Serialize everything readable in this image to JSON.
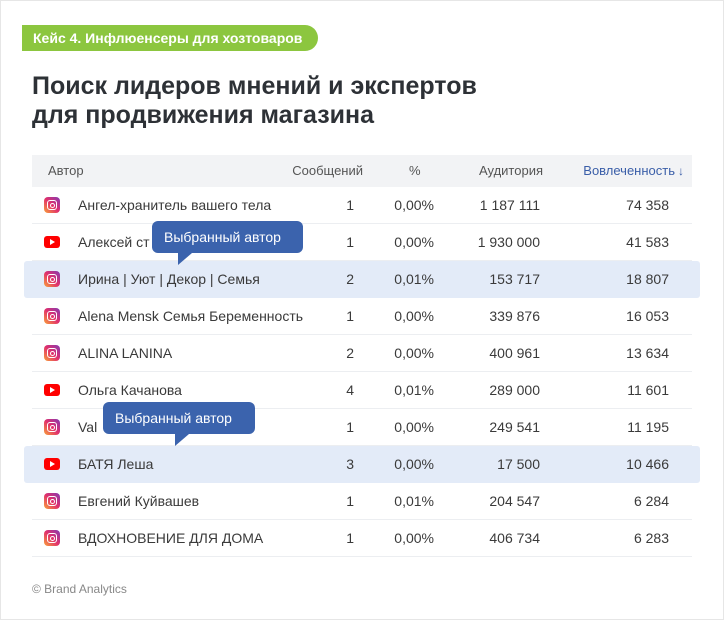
{
  "badge": "Кейс 4. Инфлюенсеры для хозтоваров",
  "title_line1": "Поиск лидеров мнений и экспертов",
  "title_line2": "для продвижения магазина",
  "columns": {
    "author": "Автор",
    "messages": "Сообщений",
    "percent": "%",
    "audience": "Аудитория",
    "engagement": "Вовлеченность",
    "sort_arrow": "↓"
  },
  "rows": [
    {
      "platform": "instagram-icon",
      "name": "Ангел-хранитель вашего тела",
      "messages": "1",
      "percent": "0,00%",
      "audience": "1 187 111",
      "engagement": "74 358",
      "selected": false
    },
    {
      "platform": "youtube-icon",
      "name": "Алексей ст",
      "messages": "1",
      "percent": "0,00%",
      "audience": "1 930 000",
      "engagement": "41 583",
      "selected": false
    },
    {
      "platform": "instagram-icon",
      "name": "Ирина | Уют | Декор | Семья",
      "messages": "2",
      "percent": "0,01%",
      "audience": "153 717",
      "engagement": "18 807",
      "selected": true
    },
    {
      "platform": "instagram-icon",
      "name": "Alena Mensk Семья Беременность",
      "messages": "1",
      "percent": "0,00%",
      "audience": "339 876",
      "engagement": "16 053",
      "selected": false
    },
    {
      "platform": "instagram-icon",
      "name": "ALINA LANINA",
      "messages": "2",
      "percent": "0,00%",
      "audience": "400 961",
      "engagement": "13 634",
      "selected": false
    },
    {
      "platform": "youtube-icon",
      "name": "Ольга Качанова",
      "messages": "4",
      "percent": "0,01%",
      "audience": "289 000",
      "engagement": "11 601",
      "selected": false
    },
    {
      "platform": "instagram-icon",
      "name": "Val",
      "messages": "1",
      "percent": "0,00%",
      "audience": "249 541",
      "engagement": "11 195",
      "selected": false
    },
    {
      "platform": "youtube-icon",
      "name": "БАТЯ Леша",
      "messages": "3",
      "percent": "0,00%",
      "audience": "17 500",
      "engagement": "10 466",
      "selected": true
    },
    {
      "platform": "instagram-icon",
      "name": "Евгений Куйвашев",
      "messages": "1",
      "percent": "0,01%",
      "audience": "204 547",
      "engagement": "6 284",
      "selected": false
    },
    {
      "platform": "instagram-icon",
      "name": "ВДОХНОВЕНИЕ ДЛЯ ДОМА",
      "messages": "1",
      "percent": "0,00%",
      "audience": "406 734",
      "engagement": "6 283",
      "selected": false
    }
  ],
  "tooltip_1": "Выбранный автор",
  "tooltip_2": "Выбранный автор",
  "footer": "© Brand Analytics",
  "colors": {
    "badge": "#8cc63f",
    "tooltip": "#3b63ad",
    "selected_row": "#e3ebf8",
    "sort_header": "#3a5ea8"
  }
}
